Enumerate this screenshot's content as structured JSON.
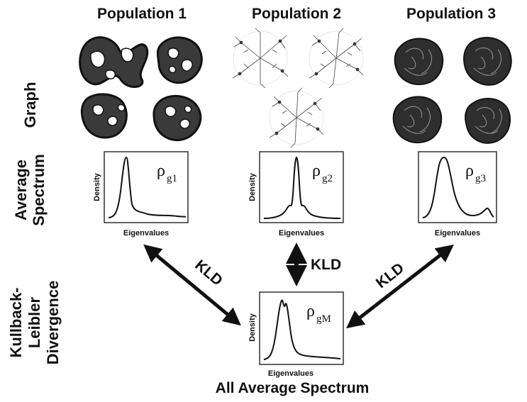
{
  "columns": [
    {
      "title": "Population 1"
    },
    {
      "title": "Population 2"
    },
    {
      "title": "Population 3"
    }
  ],
  "rows": {
    "graph": "Graph",
    "spectrum_line1": "Average",
    "spectrum_line2": "Spectrum",
    "kld_line1": "Kullback-",
    "kld_line2": "Leibler",
    "kld_line3": "Divergence"
  },
  "spectra": [
    {
      "rho": "ρ",
      "sub": "g1",
      "ylabel": "Density",
      "xlabel": "Eigenvalues"
    },
    {
      "rho": "ρ",
      "sub": "g2",
      "ylabel": "Density",
      "xlabel": "Eigenvalues"
    },
    {
      "rho": "ρ",
      "sub": "g3",
      "ylabel": "Density",
      "xlabel": "Eigenvalues"
    },
    {
      "rho": "ρ",
      "sub": "gM",
      "ylabel": "Density",
      "xlabel": "Eigenvalues"
    }
  ],
  "arrows": {
    "left_label": "KLD",
    "center_label": "KLD",
    "right_label": "KLD"
  },
  "bottom_title": "All Average Spectrum"
}
